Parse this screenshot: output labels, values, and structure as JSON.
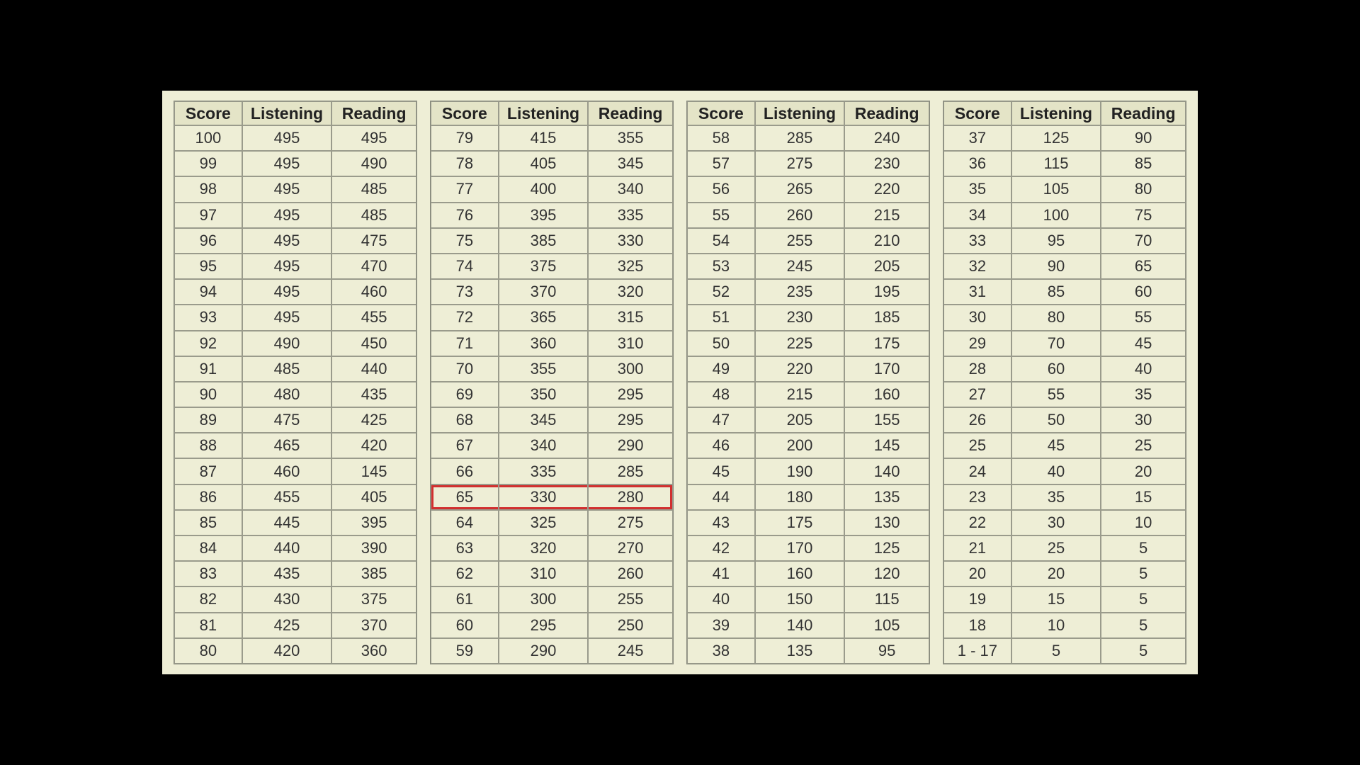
{
  "type": "table",
  "background_color": "#eeeed6",
  "header_bg": "#e4e4c7",
  "border_color": "#9a9b8c",
  "highlight_color": "#d12f2f",
  "font_family": "Arial",
  "cell_fontsize": 22,
  "header_fontsize": 23,
  "columns": [
    "Score",
    "Listening",
    "Reading"
  ],
  "column_widths_pct": [
    28,
    37,
    35
  ],
  "highlighted_score": "65",
  "panels": [
    {
      "rows": [
        [
          "100",
          "495",
          "495"
        ],
        [
          "99",
          "495",
          "490"
        ],
        [
          "98",
          "495",
          "485"
        ],
        [
          "97",
          "495",
          "485"
        ],
        [
          "96",
          "495",
          "475"
        ],
        [
          "95",
          "495",
          "470"
        ],
        [
          "94",
          "495",
          "460"
        ],
        [
          "93",
          "495",
          "455"
        ],
        [
          "92",
          "490",
          "450"
        ],
        [
          "91",
          "485",
          "440"
        ],
        [
          "90",
          "480",
          "435"
        ],
        [
          "89",
          "475",
          "425"
        ],
        [
          "88",
          "465",
          "420"
        ],
        [
          "87",
          "460",
          "145"
        ],
        [
          "86",
          "455",
          "405"
        ],
        [
          "85",
          "445",
          "395"
        ],
        [
          "84",
          "440",
          "390"
        ],
        [
          "83",
          "435",
          "385"
        ],
        [
          "82",
          "430",
          "375"
        ],
        [
          "81",
          "425",
          "370"
        ],
        [
          "80",
          "420",
          "360"
        ]
      ]
    },
    {
      "rows": [
        [
          "79",
          "415",
          "355"
        ],
        [
          "78",
          "405",
          "345"
        ],
        [
          "77",
          "400",
          "340"
        ],
        [
          "76",
          "395",
          "335"
        ],
        [
          "75",
          "385",
          "330"
        ],
        [
          "74",
          "375",
          "325"
        ],
        [
          "73",
          "370",
          "320"
        ],
        [
          "72",
          "365",
          "315"
        ],
        [
          "71",
          "360",
          "310"
        ],
        [
          "70",
          "355",
          "300"
        ],
        [
          "69",
          "350",
          "295"
        ],
        [
          "68",
          "345",
          "295"
        ],
        [
          "67",
          "340",
          "290"
        ],
        [
          "66",
          "335",
          "285"
        ],
        [
          "65",
          "330",
          "280"
        ],
        [
          "64",
          "325",
          "275"
        ],
        [
          "63",
          "320",
          "270"
        ],
        [
          "62",
          "310",
          "260"
        ],
        [
          "61",
          "300",
          "255"
        ],
        [
          "60",
          "295",
          "250"
        ],
        [
          "59",
          "290",
          "245"
        ]
      ]
    },
    {
      "rows": [
        [
          "58",
          "285",
          "240"
        ],
        [
          "57",
          "275",
          "230"
        ],
        [
          "56",
          "265",
          "220"
        ],
        [
          "55",
          "260",
          "215"
        ],
        [
          "54",
          "255",
          "210"
        ],
        [
          "53",
          "245",
          "205"
        ],
        [
          "52",
          "235",
          "195"
        ],
        [
          "51",
          "230",
          "185"
        ],
        [
          "50",
          "225",
          "175"
        ],
        [
          "49",
          "220",
          "170"
        ],
        [
          "48",
          "215",
          "160"
        ],
        [
          "47",
          "205",
          "155"
        ],
        [
          "46",
          "200",
          "145"
        ],
        [
          "45",
          "190",
          "140"
        ],
        [
          "44",
          "180",
          "135"
        ],
        [
          "43",
          "175",
          "130"
        ],
        [
          "42",
          "170",
          "125"
        ],
        [
          "41",
          "160",
          "120"
        ],
        [
          "40",
          "150",
          "115"
        ],
        [
          "39",
          "140",
          "105"
        ],
        [
          "38",
          "135",
          "95"
        ]
      ]
    },
    {
      "rows": [
        [
          "37",
          "125",
          "90"
        ],
        [
          "36",
          "115",
          "85"
        ],
        [
          "35",
          "105",
          "80"
        ],
        [
          "34",
          "100",
          "75"
        ],
        [
          "33",
          "95",
          "70"
        ],
        [
          "32",
          "90",
          "65"
        ],
        [
          "31",
          "85",
          "60"
        ],
        [
          "30",
          "80",
          "55"
        ],
        [
          "29",
          "70",
          "45"
        ],
        [
          "28",
          "60",
          "40"
        ],
        [
          "27",
          "55",
          "35"
        ],
        [
          "26",
          "50",
          "30"
        ],
        [
          "25",
          "45",
          "25"
        ],
        [
          "24",
          "40",
          "20"
        ],
        [
          "23",
          "35",
          "15"
        ],
        [
          "22",
          "30",
          "10"
        ],
        [
          "21",
          "25",
          "5"
        ],
        [
          "20",
          "20",
          "5"
        ],
        [
          "19",
          "15",
          "5"
        ],
        [
          "18",
          "10",
          "5"
        ],
        [
          "1 - 17",
          "5",
          "5"
        ]
      ]
    }
  ]
}
